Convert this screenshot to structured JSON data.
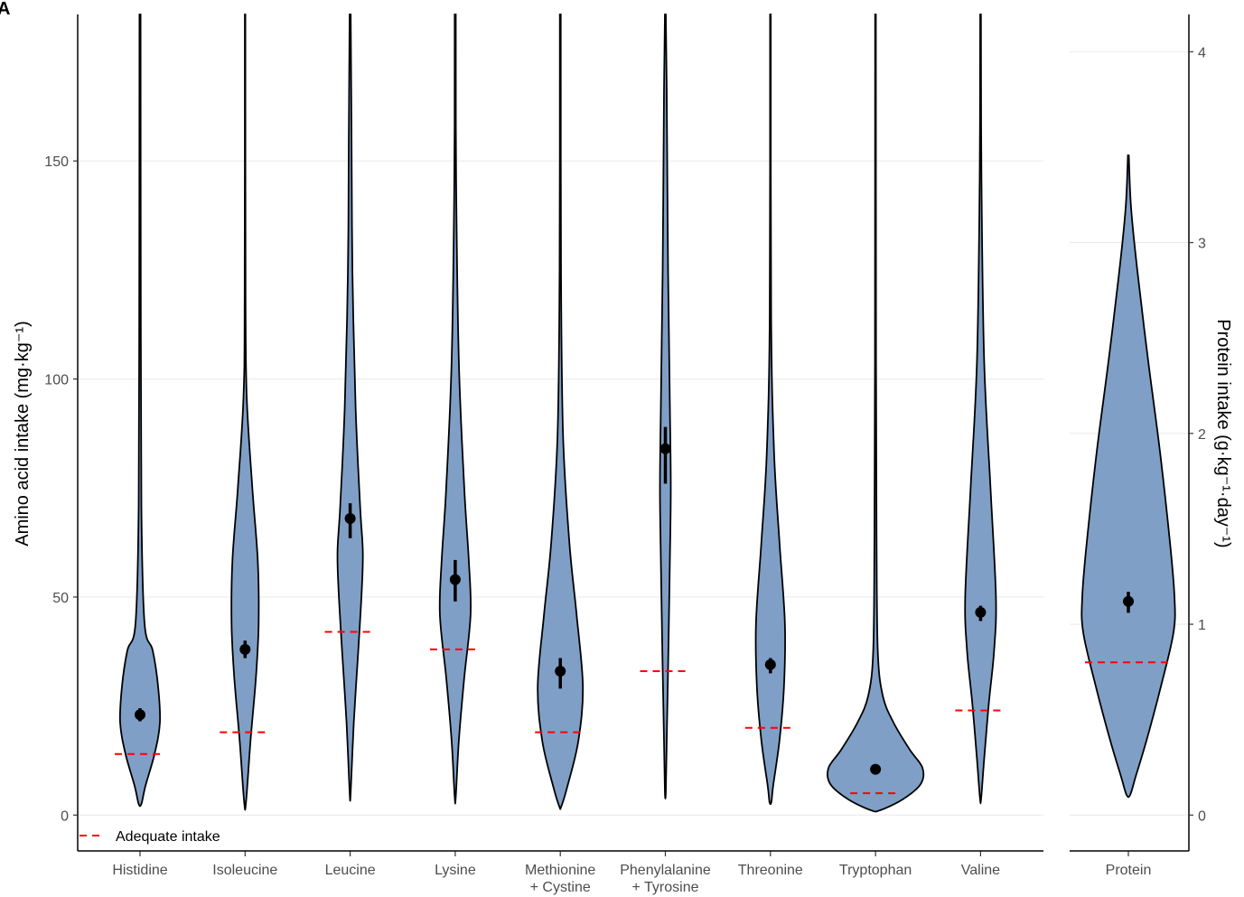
{
  "panel_label": "A",
  "legend": {
    "label": "Adequate intake"
  },
  "colors": {
    "violin_fill": "#7f9fc6",
    "adequate_line": "#ff0000",
    "grid": "#ebebeb",
    "axis": "#000000"
  },
  "chart_data": [
    {
      "type": "violin",
      "ylabel": "Amino acid intake (mg·kg⁻¹)",
      "ylim": [
        -8,
        183
      ],
      "yticks": [
        0,
        50,
        100,
        150
      ],
      "grid": true,
      "legend_position": "bottom-left",
      "categories": [
        {
          "label_lines": [
            "Histidine"
          ],
          "median": 23,
          "ci": [
            21.5,
            24.5
          ],
          "adequate": 14,
          "min": 2.5,
          "max": 183
        },
        {
          "label_lines": [
            "Isoleucine"
          ],
          "median": 38,
          "ci": [
            36,
            40
          ],
          "adequate": 19,
          "min": 3,
          "max": 120
        },
        {
          "label_lines": [
            "Leucine"
          ],
          "median": 68,
          "ci": [
            63.5,
            71.5
          ],
          "adequate": 42,
          "min": 5.5,
          "max": 183
        },
        {
          "label_lines": [
            "Lysine"
          ],
          "median": 54,
          "ci": [
            49,
            58.5
          ],
          "adequate": 38,
          "min": 4.5,
          "max": 183
        },
        {
          "label_lines": [
            "Methionine",
            "+ Cystine"
          ],
          "median": 33,
          "ci": [
            29,
            36
          ],
          "adequate": 19,
          "min": 2,
          "max": 183
        },
        {
          "label_lines": [
            "Phenylalanine",
            "+ Tyrosine"
          ],
          "median": 84,
          "ci": [
            76,
            89
          ],
          "adequate": 33,
          "min": 5.5,
          "max": 183
        },
        {
          "label_lines": [
            "Threonine"
          ],
          "median": 34.5,
          "ci": [
            32.5,
            36
          ],
          "adequate": 20,
          "min": 3,
          "max": 183
        },
        {
          "label_lines": [
            "Tryptophan"
          ],
          "median": 10.5,
          "ci": [
            10,
            11
          ],
          "adequate": 5,
          "min": 1,
          "max": 183
        },
        {
          "label_lines": [
            "Valine"
          ],
          "median": 46.5,
          "ci": [
            44.5,
            48
          ],
          "adequate": 24,
          "min": 4,
          "max": 183
        }
      ]
    },
    {
      "type": "violin",
      "ylabel": "Protein intake (g·kg⁻¹·day⁻¹)",
      "ylim": [
        -0.18,
        4.2
      ],
      "yticks": [
        0,
        1,
        2,
        3,
        4
      ],
      "grid": true,
      "categories": [
        {
          "label_lines": [
            "Protein"
          ],
          "median": 1.12,
          "ci": [
            1.06,
            1.17
          ],
          "adequate": 0.8,
          "min": 0.11,
          "max": 3.5
        }
      ]
    }
  ]
}
